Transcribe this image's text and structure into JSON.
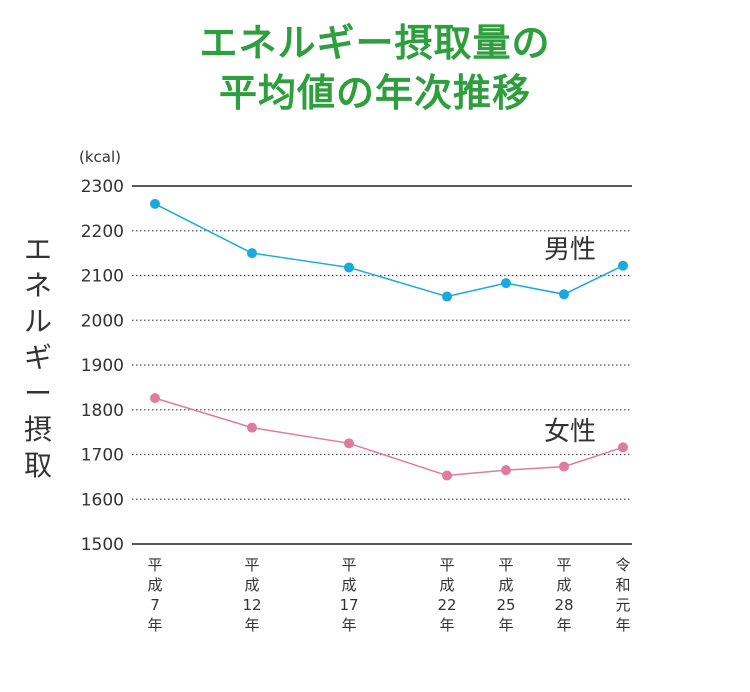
{
  "title_lines": [
    "エネルギー摂取量の",
    "平均値の年次推移"
  ],
  "chart_data": {
    "type": "line",
    "title": "エネルギー摂取量の平均値の年次推移",
    "ylabel": "エネルギー摂取",
    "yunit": "(kcal)",
    "ylim": [
      1500,
      2300
    ],
    "yticks": [
      1500,
      1600,
      1700,
      1800,
      1900,
      2000,
      2100,
      2200,
      2300
    ],
    "x": [
      7,
      12,
      17,
      22,
      25,
      28,
      31
    ],
    "categories": [
      [
        "平",
        "成",
        "7",
        "年"
      ],
      [
        "平",
        "成",
        "12",
        "年"
      ],
      [
        "平",
        "成",
        "17",
        "年"
      ],
      [
        "平",
        "成",
        "22",
        "年"
      ],
      [
        "平",
        "成",
        "25",
        "年"
      ],
      [
        "平",
        "成",
        "28",
        "年"
      ],
      [
        "令",
        "和",
        "元",
        "年"
      ]
    ],
    "series": [
      {
        "name": "男性",
        "color": "#1aa9dc",
        "values": [
          2260,
          2150,
          2118,
          2053,
          2083,
          2058,
          2122
        ]
      },
      {
        "name": "女性",
        "color": "#e07ba0",
        "values": [
          1826,
          1760,
          1725,
          1653,
          1665,
          1673,
          1716
        ]
      }
    ],
    "grid": "dotted"
  }
}
